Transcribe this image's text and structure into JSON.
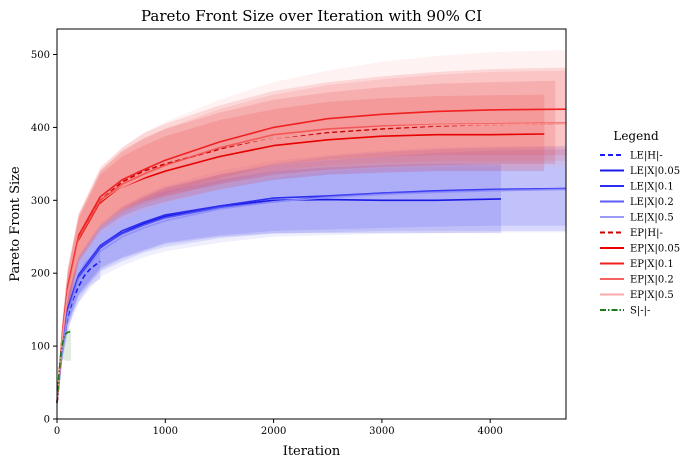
{
  "chart_data": {
    "type": "line",
    "title": "Pareto Front Size over Iteration with 90% CI",
    "xlabel": "Iteration",
    "ylabel": "Pareto Front Size",
    "xlim": [
      0,
      4700
    ],
    "ylim": [
      0,
      535
    ],
    "xticks": [
      0,
      1000,
      2000,
      3000,
      4000
    ],
    "yticks": [
      0,
      100,
      200,
      300,
      400,
      500
    ],
    "legend": {
      "title": "Legend",
      "placement": "right"
    },
    "series": [
      {
        "name": "LE|H|-",
        "color": "#1a1aff",
        "dash": "dashed",
        "opacity": 1.0,
        "x": [
          0,
          20,
          50,
          100,
          150,
          200,
          250,
          300,
          350,
          400
        ],
        "y": [
          22,
          60,
          100,
          140,
          165,
          182,
          196,
          205,
          211,
          216
        ],
        "ci_lo": [
          18,
          50,
          85,
          120,
          145,
          160,
          172,
          182,
          188,
          192
        ],
        "ci_hi": [
          28,
          70,
          115,
          160,
          185,
          200,
          215,
          222,
          230,
          235
        ]
      },
      {
        "name": "LE|X|0.05",
        "color": "#1a1ae6",
        "dash": "solid",
        "opacity": 1.0,
        "x": [
          0,
          50,
          100,
          200,
          400,
          600,
          800,
          1000,
          1500,
          2000,
          2500,
          3000,
          3500,
          4100
        ],
        "y": [
          22,
          100,
          150,
          195,
          235,
          255,
          268,
          278,
          292,
          300,
          301,
          300,
          300,
          302
        ],
        "ci_lo": [
          18,
          85,
          130,
          170,
          205,
          220,
          230,
          240,
          250,
          255,
          255,
          255,
          255,
          255
        ],
        "ci_hi": [
          28,
          115,
          170,
          220,
          262,
          285,
          300,
          312,
          328,
          340,
          345,
          348,
          350,
          350
        ]
      },
      {
        "name": "LE|X|0.1",
        "color": "#2d2df0",
        "dash": "solid",
        "opacity": 1.0,
        "x": [
          0,
          50,
          100,
          200,
          400,
          600,
          800,
          1000,
          1500,
          2000,
          2500,
          3000,
          3500,
          4000,
          4700
        ],
        "y": [
          22,
          102,
          152,
          198,
          238,
          258,
          270,
          280,
          292,
          303,
          306,
          310,
          313,
          315,
          316
        ],
        "ci_lo": [
          18,
          86,
          132,
          172,
          208,
          222,
          232,
          242,
          252,
          258,
          260,
          262,
          264,
          265,
          265
        ],
        "ci_hi": [
          28,
          118,
          172,
          224,
          266,
          290,
          305,
          318,
          335,
          348,
          355,
          360,
          365,
          368,
          370
        ]
      },
      {
        "name": "LE|X|0.2",
        "color": "#4a4af5",
        "dash": "solid",
        "opacity": 0.9,
        "x": [
          0,
          50,
          100,
          200,
          400,
          600,
          800,
          1000,
          1500,
          2000,
          2500,
          3000,
          3500,
          4000,
          4700
        ],
        "y": [
          22,
          98,
          148,
          196,
          236,
          254,
          266,
          276,
          290,
          298,
          305,
          310,
          312,
          314,
          316
        ],
        "ci_lo": [
          18,
          82,
          128,
          168,
          202,
          216,
          228,
          236,
          248,
          254,
          256,
          258,
          258,
          258,
          258
        ],
        "ci_hi": [
          28,
          114,
          168,
          222,
          264,
          288,
          304,
          316,
          335,
          350,
          360,
          366,
          370,
          372,
          374
        ]
      },
      {
        "name": "LE|X|0.5",
        "color": "#8f8ff8",
        "dash": "solid",
        "opacity": 0.9,
        "x": [
          0,
          50,
          100,
          200,
          400,
          600,
          800,
          1000,
          1500,
          2000,
          2500,
          3000,
          3500,
          4000,
          4700
        ],
        "y": [
          22,
          95,
          145,
          192,
          230,
          250,
          262,
          272,
          288,
          298,
          304,
          308,
          311,
          313,
          315
        ],
        "ci_lo": [
          18,
          78,
          122,
          160,
          195,
          210,
          222,
          230,
          242,
          250,
          252,
          254,
          255,
          256,
          256
        ],
        "ci_hi": [
          28,
          112,
          166,
          222,
          268,
          292,
          308,
          320,
          340,
          354,
          362,
          368,
          372,
          374,
          375
        ]
      },
      {
        "name": "EP|H|-",
        "color": "#cc0000",
        "dash": "dashed",
        "opacity": 1.0,
        "x": [
          0,
          50,
          100,
          200,
          400,
          600,
          800,
          1000,
          1500,
          2000,
          2500,
          3000,
          3500,
          4000,
          4600
        ],
        "y": [
          22,
          115,
          180,
          250,
          300,
          325,
          340,
          350,
          370,
          385,
          393,
          398,
          402,
          404,
          405
        ],
        "ci_lo": [
          18,
          98,
          155,
          220,
          262,
          285,
          298,
          306,
          322,
          335,
          342,
          346,
          348,
          350,
          350
        ],
        "ci_hi": [
          28,
          132,
          205,
          280,
          340,
          368,
          385,
          398,
          420,
          438,
          448,
          455,
          460,
          462,
          464
        ]
      },
      {
        "name": "EP|X|0.05",
        "color": "#e60000",
        "dash": "solid",
        "opacity": 1.0,
        "x": [
          0,
          50,
          100,
          200,
          400,
          600,
          800,
          1000,
          1500,
          2000,
          2500,
          3000,
          3500,
          4000,
          4500
        ],
        "y": [
          22,
          112,
          175,
          245,
          296,
          318,
          330,
          340,
          360,
          375,
          383,
          388,
          390,
          390,
          391
        ],
        "ci_lo": [
          18,
          95,
          150,
          215,
          258,
          278,
          290,
          298,
          315,
          328,
          335,
          338,
          340,
          340,
          340
        ],
        "ci_hi": [
          28,
          130,
          200,
          275,
          335,
          360,
          375,
          388,
          410,
          425,
          435,
          440,
          443,
          444,
          445
        ]
      },
      {
        "name": "EP|X|0.1",
        "color": "#f02020",
        "dash": "solid",
        "opacity": 1.0,
        "x": [
          0,
          50,
          100,
          200,
          400,
          600,
          800,
          1000,
          1500,
          2000,
          2500,
          3000,
          3500,
          4000,
          4700
        ],
        "y": [
          22,
          118,
          182,
          252,
          305,
          328,
          342,
          355,
          380,
          400,
          412,
          418,
          422,
          424,
          425
        ],
        "ci_lo": [
          18,
          100,
          156,
          222,
          266,
          288,
          300,
          310,
          330,
          348,
          356,
          360,
          362,
          362,
          362
        ],
        "ci_hi": [
          28,
          136,
          208,
          282,
          345,
          372,
          392,
          405,
          430,
          450,
          462,
          470,
          476,
          480,
          482
        ]
      },
      {
        "name": "EP|X|0.2",
        "color": "#f55050",
        "dash": "solid",
        "opacity": 0.9,
        "x": [
          0,
          50,
          100,
          200,
          400,
          600,
          800,
          1000,
          1500,
          2000,
          2500,
          3000,
          3500,
          4000,
          4700
        ],
        "y": [
          22,
          116,
          178,
          248,
          300,
          322,
          336,
          348,
          372,
          390,
          398,
          402,
          404,
          405,
          406
        ],
        "ci_lo": [
          18,
          98,
          152,
          218,
          262,
          282,
          295,
          304,
          324,
          340,
          348,
          352,
          354,
          354,
          354
        ],
        "ci_hi": [
          28,
          134,
          204,
          278,
          340,
          366,
          384,
          398,
          425,
          445,
          458,
          466,
          472,
          476,
          478
        ]
      },
      {
        "name": "EP|X|0.5",
        "color": "#f7a0a0",
        "dash": "solid",
        "opacity": 0.9,
        "x": [
          0,
          50,
          100,
          200,
          400,
          600,
          800,
          1000,
          1500,
          2000,
          2500,
          3000,
          3500,
          4000,
          4700
        ],
        "y": [
          22,
          112,
          172,
          242,
          294,
          318,
          332,
          344,
          368,
          385,
          395,
          400,
          403,
          404,
          405
        ],
        "ci_lo": [
          18,
          94,
          146,
          210,
          252,
          272,
          285,
          295,
          315,
          330,
          340,
          344,
          346,
          346,
          346
        ],
        "ci_hi": [
          28,
          130,
          200,
          276,
          342,
          372,
          392,
          408,
          438,
          462,
          478,
          490,
          498,
          503,
          506
        ]
      },
      {
        "name": "S|-|-",
        "color": "#1a7a1a",
        "dash": "dashdot",
        "opacity": 1.0,
        "x": [
          0,
          20,
          40,
          60,
          80,
          100,
          130
        ],
        "y": [
          22,
          65,
          95,
          110,
          117,
          119,
          120
        ],
        "ci_lo": [
          18,
          55,
          80,
          82,
          80,
          80,
          80
        ],
        "ci_hi": [
          28,
          75,
          108,
          120,
          122,
          123,
          123
        ]
      }
    ]
  }
}
